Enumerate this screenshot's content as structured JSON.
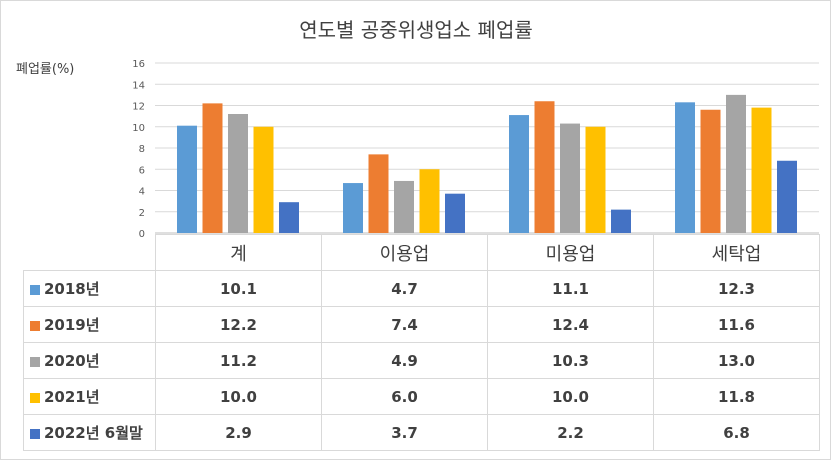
{
  "chart_data": {
    "type": "bar",
    "title": "연도별 공중위생업소 폐업률",
    "ylabel": "폐업률(%)",
    "ylim": [
      0,
      16
    ],
    "yticks": [
      0,
      2,
      4,
      6,
      8,
      10,
      12,
      14,
      16
    ],
    "grid": true,
    "legend_position": "table-left",
    "categories": [
      "계",
      "이용업",
      "미용업",
      "세탁업"
    ],
    "series": [
      {
        "name": "2018년",
        "color": "#5b9bd5",
        "values": [
          10.1,
          4.7,
          11.1,
          12.3
        ],
        "labels": [
          "10.1",
          "4.7",
          "11.1",
          "12.3"
        ]
      },
      {
        "name": "2019년",
        "color": "#ed7d31",
        "values": [
          12.2,
          7.4,
          12.4,
          11.6
        ],
        "labels": [
          "12.2",
          "7.4",
          "12.4",
          "11.6"
        ]
      },
      {
        "name": "2020년",
        "color": "#a5a5a5",
        "values": [
          11.2,
          4.9,
          10.3,
          13.0
        ],
        "labels": [
          "11.2",
          "4.9",
          "10.3",
          "13.0"
        ]
      },
      {
        "name": "2021년",
        "color": "#ffc000",
        "values": [
          10.0,
          6.0,
          10.0,
          11.8
        ],
        "labels": [
          "10.0",
          "6.0",
          "10.0",
          "11.8"
        ]
      },
      {
        "name": "2022년 6월말",
        "color": "#4472c4",
        "values": [
          2.9,
          3.7,
          2.2,
          6.8
        ],
        "labels": [
          "2.9",
          "3.7",
          "2.2",
          "6.8"
        ]
      }
    ]
  }
}
